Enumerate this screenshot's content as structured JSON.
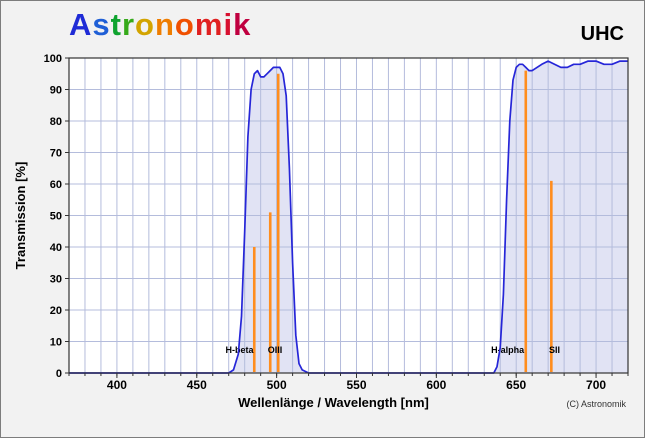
{
  "header": {
    "logo_letters": [
      {
        "ch": "A",
        "color": "#1f2bd6"
      },
      {
        "ch": "s",
        "color": "#1f5fd6"
      },
      {
        "ch": "t",
        "color": "#0fa32f"
      },
      {
        "ch": "r",
        "color": "#36aa1a"
      },
      {
        "ch": "o",
        "color": "#d3a400"
      },
      {
        "ch": "n",
        "color": "#ee7d00"
      },
      {
        "ch": "o",
        "color": "#f05000"
      },
      {
        "ch": "m",
        "color": "#e02020"
      },
      {
        "ch": "i",
        "color": "#d81030"
      },
      {
        "ch": "k",
        "color": "#c00040"
      }
    ],
    "filter_label": "UHC"
  },
  "footer": {
    "copyright": "(C) Astronomik"
  },
  "chart_data": {
    "type": "area",
    "title": "",
    "xlabel": "Wellenlänge / Wavelength [nm]",
    "ylabel": "Transmission [%]",
    "xlim": [
      370,
      720
    ],
    "ylim": [
      0,
      100
    ],
    "x_ticks": [
      400,
      450,
      500,
      550,
      600,
      650,
      700
    ],
    "y_ticks": [
      0,
      10,
      20,
      30,
      40,
      50,
      60,
      70,
      80,
      90,
      100
    ],
    "grid_step_x_nm": 10,
    "grid_step_y_pct": 10,
    "grid_on": true,
    "colors": {
      "curve": "#2626d8",
      "fill": "#cdd0ec",
      "emission": "#ff8d1e",
      "grid": "#b4bcdc",
      "plot_bg": "#ffffff",
      "axis": "#333333",
      "text": "#000000"
    },
    "transmission_curve": [
      [
        370,
        0
      ],
      [
        455,
        0
      ],
      [
        465,
        0
      ],
      [
        470,
        0
      ],
      [
        473,
        1
      ],
      [
        476,
        6
      ],
      [
        478,
        18
      ],
      [
        480,
        45
      ],
      [
        482,
        75
      ],
      [
        484,
        90
      ],
      [
        486,
        95
      ],
      [
        488,
        96
      ],
      [
        490,
        94
      ],
      [
        492,
        94
      ],
      [
        494,
        95
      ],
      [
        496,
        96
      ],
      [
        498,
        97
      ],
      [
        500,
        97
      ],
      [
        502,
        97
      ],
      [
        504,
        95
      ],
      [
        506,
        88
      ],
      [
        508,
        65
      ],
      [
        510,
        35
      ],
      [
        512,
        12
      ],
      [
        514,
        3
      ],
      [
        516,
        1
      ],
      [
        520,
        0
      ],
      [
        560,
        0
      ],
      [
        600,
        0
      ],
      [
        630,
        0
      ],
      [
        636,
        0
      ],
      [
        638,
        2
      ],
      [
        640,
        8
      ],
      [
        642,
        25
      ],
      [
        644,
        55
      ],
      [
        646,
        80
      ],
      [
        648,
        93
      ],
      [
        650,
        97
      ],
      [
        652,
        98
      ],
      [
        654,
        98
      ],
      [
        656,
        97
      ],
      [
        658,
        96
      ],
      [
        660,
        96
      ],
      [
        663,
        97
      ],
      [
        666,
        98
      ],
      [
        670,
        99
      ],
      [
        674,
        98
      ],
      [
        678,
        97
      ],
      [
        682,
        97
      ],
      [
        686,
        98
      ],
      [
        690,
        98
      ],
      [
        695,
        99
      ],
      [
        700,
        99
      ],
      [
        705,
        98
      ],
      [
        710,
        98
      ],
      [
        715,
        99
      ],
      [
        720,
        99
      ]
    ],
    "emission_lines": [
      {
        "label": "H-beta",
        "nm": 486,
        "peak": 40
      },
      {
        "label": "OIII",
        "nm": 496,
        "peak": 51
      },
      {
        "label": "OIII",
        "nm": 501,
        "peak": 95
      },
      {
        "label": "H-alpha",
        "nm": 656,
        "peak": 96
      },
      {
        "label": "SII",
        "nm": 672,
        "peak": 61
      }
    ],
    "line_labels": [
      {
        "text": "H-beta",
        "nm": 485.5,
        "anchor": "end"
      },
      {
        "text": "OIII",
        "nm": 499,
        "anchor": "middle"
      },
      {
        "text": "H-alpha",
        "nm": 655,
        "anchor": "end"
      },
      {
        "text": "SII",
        "nm": 674,
        "anchor": "middle"
      }
    ]
  }
}
